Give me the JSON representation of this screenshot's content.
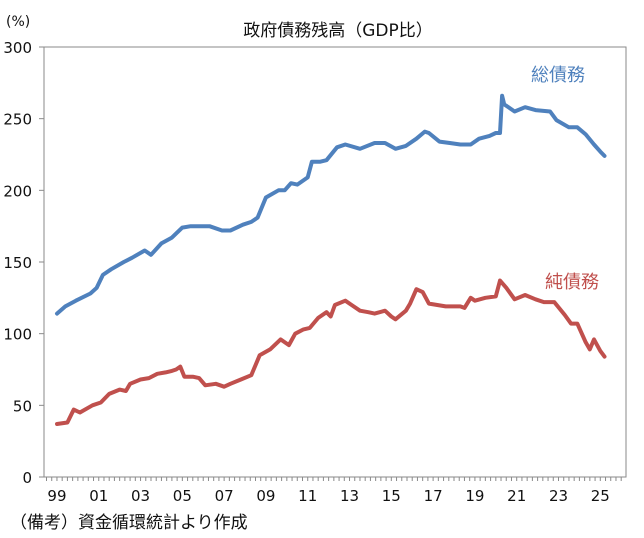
{
  "chart_data": {
    "type": "line",
    "title": "政府債務残高（GDP比）",
    "ylabel": "(%)",
    "xlabel": "",
    "ylim": [
      0,
      300
    ],
    "xlim": [
      1998.38,
      2026.23
    ],
    "yticks": [
      0,
      50,
      100,
      150,
      200,
      250,
      300
    ],
    "xtick_years": [
      1999,
      2001,
      2003,
      2005,
      2007,
      2009,
      2011,
      2013,
      2015,
      2017,
      2019,
      2021,
      2023,
      2025
    ],
    "xtick_labels": [
      "99",
      "01",
      "03",
      "05",
      "07",
      "09",
      "11",
      "13",
      "15",
      "17",
      "19",
      "21",
      "23",
      "25"
    ],
    "grid": false,
    "note": "（備考）資金循環統計より作成",
    "series": [
      {
        "name": "総債務",
        "color": "#4f81bd",
        "x": [
          1999.0,
          1999.4,
          1999.9,
          2000.6,
          2000.9,
          2001.2,
          2001.6,
          2002.2,
          2002.6,
          2003.2,
          2003.5,
          2004.0,
          2004.5,
          2005.0,
          2005.4,
          2005.8,
          2006.3,
          2006.9,
          2007.3,
          2007.9,
          2008.3,
          2008.6,
          2009.0,
          2009.6,
          2009.9,
          2010.2,
          2010.5,
          2011.0,
          2011.2,
          2011.6,
          2011.9,
          2012.4,
          2012.8,
          2013.5,
          2014.2,
          2014.7,
          2015.2,
          2015.7,
          2016.2,
          2016.6,
          2016.8,
          2017.3,
          2017.8,
          2018.3,
          2018.8,
          2019.2,
          2019.7,
          2020.0,
          2020.2,
          2020.3,
          2020.4,
          2020.9,
          2021.4,
          2021.9,
          2022.6,
          2022.9,
          2023.5,
          2023.9,
          2024.3,
          2024.7,
          2025.0,
          2025.2
        ],
        "y": [
          114,
          119,
          123,
          128,
          132,
          141,
          145,
          150,
          153,
          158,
          155,
          163,
          167,
          174,
          175,
          175,
          175,
          172,
          172,
          176,
          178,
          181,
          195,
          200,
          200,
          205,
          204,
          209,
          220,
          220,
          221,
          230,
          232,
          229,
          233,
          233,
          229,
          231,
          236,
          241,
          240,
          234,
          233,
          232,
          232,
          236,
          238,
          240,
          240,
          266,
          260,
          255,
          258,
          256,
          255,
          249,
          244,
          244,
          239,
          232,
          227,
          224
        ]
      },
      {
        "name": "純債務",
        "color": "#c0504d",
        "x": [
          1999.0,
          1999.5,
          1999.8,
          2000.1,
          2000.7,
          2001.1,
          2001.5,
          2002.0,
          2002.3,
          2002.5,
          2003.0,
          2003.4,
          2003.8,
          2004.2,
          2004.5,
          2004.7,
          2004.9,
          2005.1,
          2005.5,
          2005.8,
          2006.1,
          2006.6,
          2007.0,
          2007.3,
          2007.8,
          2008.3,
          2008.7,
          2009.2,
          2009.7,
          2010.1,
          2010.4,
          2010.8,
          2011.1,
          2011.5,
          2011.9,
          2012.1,
          2012.3,
          2012.8,
          2013.1,
          2013.5,
          2013.9,
          2014.2,
          2014.7,
          2015.0,
          2015.2,
          2015.7,
          2015.9,
          2016.2,
          2016.5,
          2016.8,
          2017.6,
          2018.3,
          2018.5,
          2018.8,
          2019.0,
          2019.5,
          2020.0,
          2020.2,
          2020.5,
          2020.9,
          2021.4,
          2021.9,
          2022.3,
          2022.8,
          2023.3,
          2023.6,
          2023.9,
          2024.3,
          2024.5,
          2024.7,
          2025.0,
          2025.2
        ],
        "y": [
          37,
          38,
          47,
          45,
          50,
          52,
          58,
          61,
          60,
          65,
          68,
          69,
          72,
          73,
          74,
          75,
          77,
          70,
          70,
          69,
          64,
          65,
          63,
          65,
          68,
          71,
          85,
          89,
          96,
          92,
          100,
          103,
          104,
          111,
          115,
          112,
          120,
          123,
          120,
          116,
          115,
          114,
          116,
          112,
          110,
          116,
          121,
          131,
          129,
          121,
          119,
          119,
          118,
          125,
          123,
          125,
          126,
          137,
          132,
          124,
          127,
          124,
          122,
          122,
          113,
          107,
          107,
          94,
          89,
          96,
          88,
          84
        ]
      }
    ]
  }
}
